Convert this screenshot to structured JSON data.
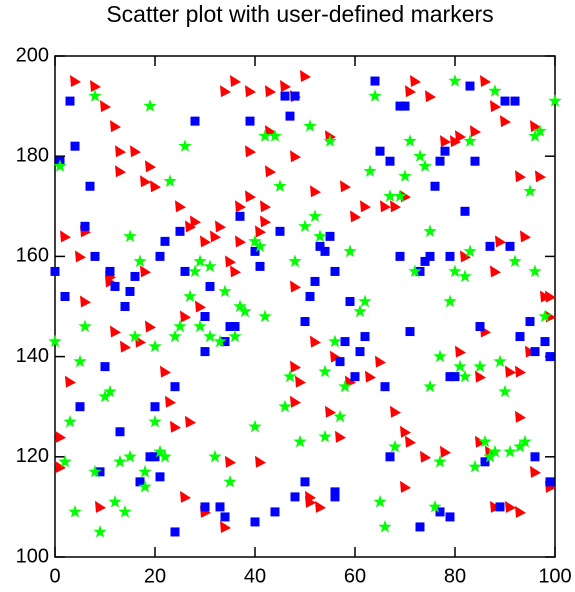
{
  "chart_data": {
    "type": "scatter",
    "title": "Scatter plot with user-defined markers",
    "xlim": [
      0,
      100
    ],
    "ylim": [
      100,
      200
    ],
    "xticks": [
      0,
      20,
      40,
      60,
      80,
      100
    ],
    "yticks": [
      100,
      120,
      140,
      160,
      180,
      200
    ],
    "series": [
      {
        "marker": "triangle",
        "color": "#ff0000",
        "x": [
          4,
          8,
          10,
          12,
          13,
          16,
          13,
          19,
          20,
          18,
          2,
          6,
          11,
          11,
          5,
          18,
          25,
          27,
          30,
          28,
          33,
          32,
          37,
          37,
          39,
          42,
          43,
          48,
          48,
          43,
          36,
          39,
          34,
          41,
          43,
          39,
          42,
          48,
          50,
          46,
          55,
          52,
          58,
          60,
          62,
          66,
          68,
          70,
          71,
          72,
          75,
          78,
          80,
          81,
          84,
          86,
          88,
          90,
          82,
          88,
          93,
          94,
          86,
          81,
          91,
          85,
          93,
          95,
          99,
          97,
          96,
          89,
          93,
          96,
          87,
          85,
          78,
          74,
          70,
          71,
          68,
          65,
          63,
          59,
          56,
          48,
          52,
          55,
          57,
          51,
          51,
          53,
          41,
          35,
          27,
          30,
          34,
          26,
          24,
          23,
          22,
          19,
          17,
          12,
          14,
          6,
          3,
          1,
          1,
          9,
          26,
          29,
          36,
          35,
          70,
          88,
          91,
          93,
          99,
          99,
          98,
          49,
          48
        ],
        "y": [
          195,
          194,
          190,
          186,
          181,
          181,
          177,
          178,
          174,
          175,
          164,
          165,
          155,
          156,
          160,
          157,
          170,
          166,
          163,
          167,
          166,
          164,
          170,
          163,
          172,
          170,
          177,
          180,
          192,
          193,
          195,
          193,
          193,
          165,
          185,
          181,
          167,
          154,
          196,
          194,
          184,
          173,
          174,
          168,
          170,
          170,
          170,
          172,
          193,
          195,
          192,
          183,
          183,
          184,
          185,
          195,
          190,
          187,
          160,
          157,
          176,
          164,
          145,
          141,
          137,
          136,
          137,
          141,
          152,
          176,
          186,
          163,
          128,
          117,
          121,
          123,
          121,
          120,
          125,
          123,
          129,
          139,
          136,
          135,
          140,
          131,
          143,
          129,
          124,
          112,
          111,
          110,
          119,
          119,
          127,
          109,
          106,
          112,
          126,
          131,
          137,
          146,
          143,
          145,
          142,
          151,
          135,
          124,
          118,
          110,
          148,
          150,
          157,
          159,
          114,
          110,
          110,
          109,
          114,
          148,
          152,
          135,
          138
        ]
      },
      {
        "marker": "square",
        "color": "#0000ff",
        "x": [
          3,
          4,
          1,
          7,
          6,
          8,
          0,
          2,
          11,
          12,
          14,
          15,
          16,
          22,
          21,
          25,
          28,
          26,
          31,
          30,
          30,
          34,
          35,
          36,
          37,
          39,
          40,
          41,
          47,
          46,
          48,
          45,
          50,
          51,
          52,
          53,
          54,
          55,
          56,
          57,
          58,
          59,
          62,
          61,
          60,
          64,
          65,
          67,
          69,
          70,
          69,
          71,
          73,
          74,
          75,
          76,
          78,
          77,
          79,
          82,
          83,
          84,
          85,
          87,
          90,
          91,
          92,
          93,
          95,
          96,
          98,
          99,
          99,
          96,
          89,
          86,
          80,
          79,
          79,
          77,
          73,
          66,
          67,
          56,
          56,
          50,
          48,
          44,
          40,
          34,
          33,
          30,
          24,
          20,
          20,
          21,
          19,
          17,
          13,
          9,
          5,
          10,
          24
        ],
        "y": [
          191,
          182,
          179,
          174,
          166,
          160,
          157,
          152,
          157,
          154,
          150,
          153,
          156,
          163,
          160,
          165,
          187,
          157,
          154,
          148,
          141,
          143,
          146,
          146,
          168,
          187,
          161,
          158,
          188,
          192,
          192,
          165,
          147,
          152,
          155,
          162,
          161,
          164,
          157,
          139,
          143,
          151,
          144,
          141,
          136,
          195,
          181,
          179,
          190,
          190,
          160,
          145,
          157,
          159,
          160,
          174,
          181,
          179,
          160,
          169,
          194,
          179,
          146,
          162,
          191,
          162,
          191,
          144,
          147,
          141,
          143,
          140,
          115,
          120,
          110,
          119,
          136,
          136,
          108,
          109,
          106,
          134,
          120,
          113,
          112,
          115,
          112,
          109,
          107,
          108,
          110,
          110,
          105,
          130,
          120,
          116,
          120,
          115,
          125,
          117,
          130,
          138,
          134
        ]
      },
      {
        "marker": "star",
        "color": "#00ff00",
        "x": [
          0,
          1,
          2,
          3,
          4,
          5,
          6,
          8,
          8,
          9,
          10,
          11,
          12,
          13,
          14,
          15,
          15,
          16,
          17,
          18,
          18,
          19,
          20,
          20,
          21,
          22,
          23,
          24,
          25,
          26,
          27,
          28,
          29,
          29,
          31,
          31,
          32,
          33,
          34,
          35,
          36,
          37,
          38,
          40,
          40,
          41,
          42,
          42,
          44,
          45,
          46,
          47,
          48,
          49,
          50,
          51,
          52,
          53,
          54,
          54,
          55,
          56,
          57,
          58,
          59,
          61,
          62,
          63,
          64,
          65,
          66,
          67,
          68,
          69,
          70,
          71,
          72,
          73,
          74,
          75,
          75,
          76,
          77,
          77,
          79,
          80,
          80,
          81,
          82,
          82,
          83,
          83,
          84,
          85,
          86,
          87,
          88,
          88,
          89,
          90,
          91,
          92,
          93,
          94,
          95,
          96,
          96,
          97,
          98,
          100
        ],
        "y": [
          143,
          178,
          119,
          127,
          109,
          139,
          146,
          117,
          192,
          105,
          132,
          133,
          111,
          119,
          109,
          164,
          120,
          144,
          159,
          114,
          117,
          190,
          127,
          142,
          121,
          120,
          175,
          144,
          146,
          182,
          152,
          157,
          159,
          146,
          158,
          144,
          120,
          143,
          153,
          115,
          144,
          150,
          149,
          163,
          126,
          162,
          148,
          184,
          184,
          174,
          130,
          136,
          159,
          123,
          166,
          186,
          168,
          164,
          137,
          124,
          183,
          143,
          128,
          134,
          161,
          149,
          151,
          177,
          192,
          111,
          106,
          172,
          122,
          172,
          176,
          183,
          157,
          180,
          178,
          165,
          134,
          110,
          140,
          119,
          151,
          157,
          195,
          138,
          136,
          156,
          161,
          183,
          118,
          138,
          123,
          120,
          193,
          121,
          139,
          133,
          121,
          159,
          122,
          123,
          173,
          184,
          157,
          185,
          148,
          191
        ]
      }
    ]
  }
}
